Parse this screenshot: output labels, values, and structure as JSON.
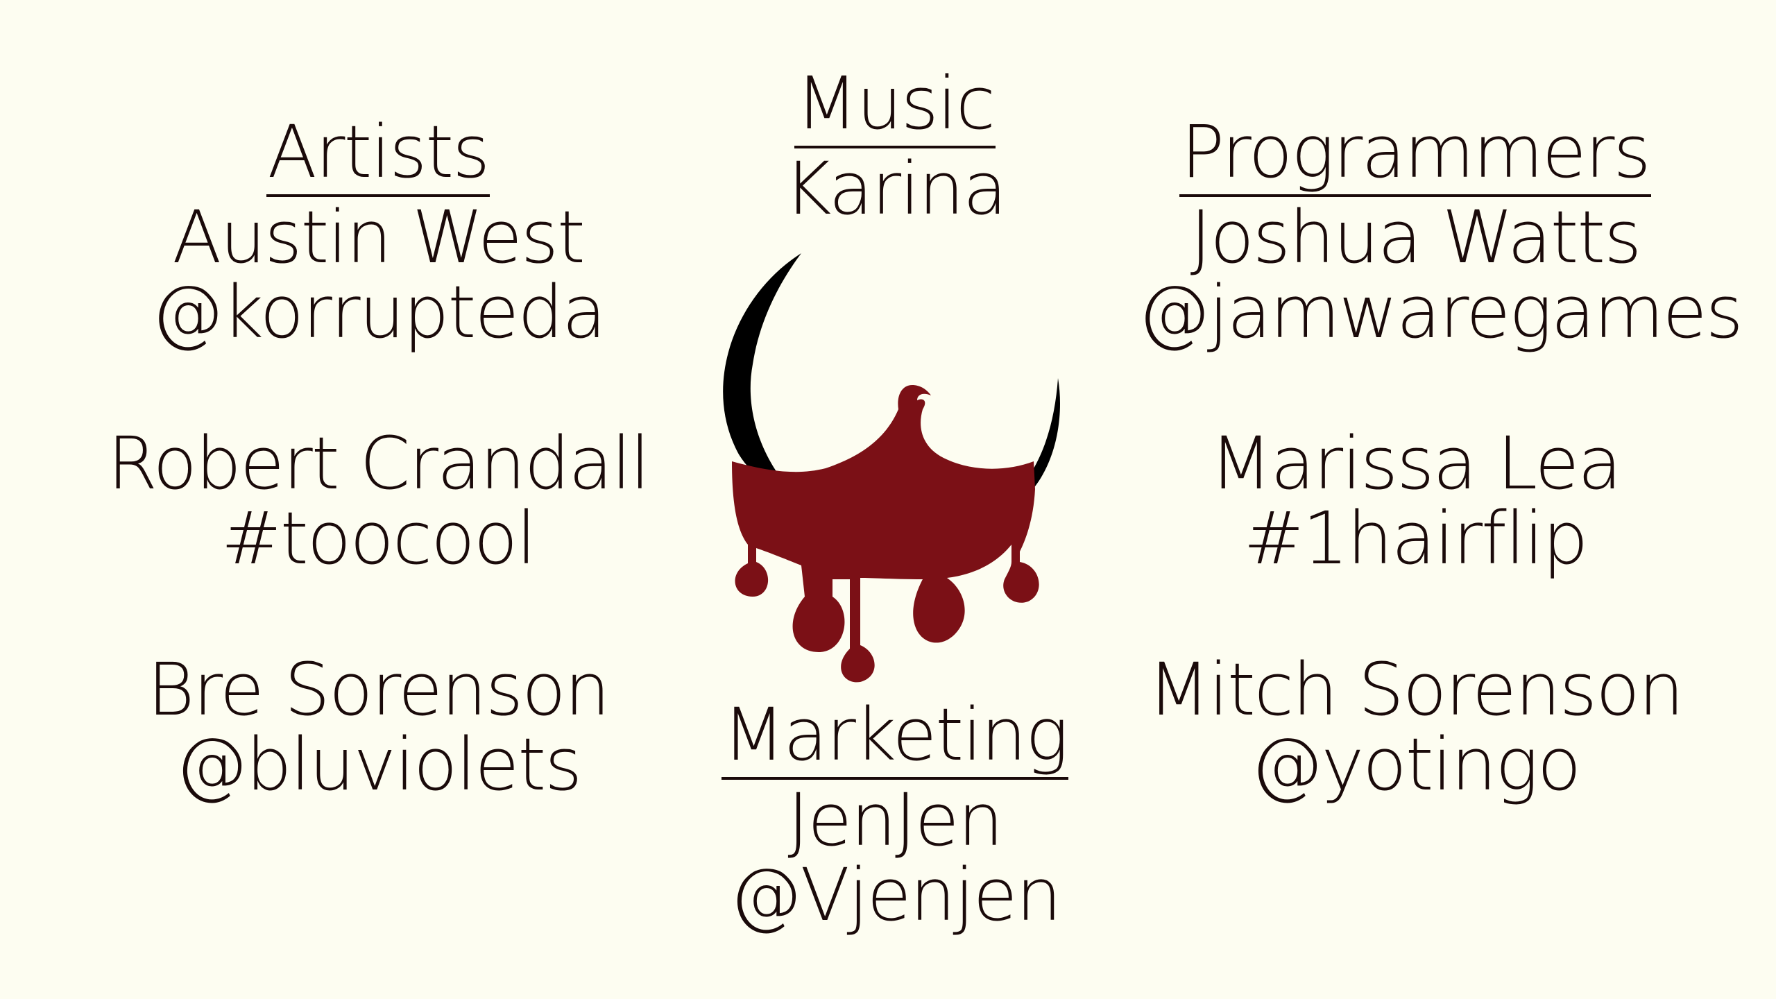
{
  "artists": {
    "heading": "Artists",
    "members": [
      {
        "name": "Austin West",
        "handle": "@korrupteda"
      },
      {
        "name": "Robert Crandall",
        "handle": "#toocool"
      },
      {
        "name": "Bre Sorenson",
        "handle": "@bluviolets"
      }
    ]
  },
  "music": {
    "heading": "Music",
    "members": [
      {
        "name": "Karina"
      }
    ]
  },
  "programmers": {
    "heading": "Programmers",
    "members": [
      {
        "name": "Joshua Watts",
        "handle": "@jamwaregames"
      },
      {
        "name": "Marissa Lea",
        "handle": "#1hairflip"
      },
      {
        "name": "Mitch Sorenson",
        "handle": "@yotingo"
      }
    ]
  },
  "marketing": {
    "heading": "Marketing",
    "members": [
      {
        "name": "JenJen",
        "handle": "@Vjenjen"
      }
    ]
  },
  "colors": {
    "background": "#fdfdf1",
    "text": "#1a0a0a",
    "blood": "#7b1016",
    "crescent": "#000000"
  },
  "logo": {
    "icon": "blood-moon-logo-icon"
  }
}
